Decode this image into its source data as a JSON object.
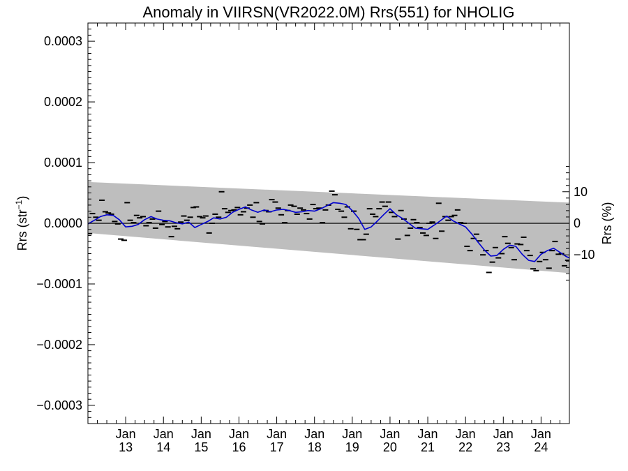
{
  "chart_data": {
    "type": "line",
    "title": "Anomaly in VIIRSN(VR2022.0M) Rrs(551) for NHOLIG",
    "ylabel_left": "Rrs (str⁻¹)",
    "ylabel_right": "Rrs (%)",
    "ylim": [
      -0.00033,
      0.00033
    ],
    "y_ticks": [
      -0.0003,
      -0.0002,
      -0.0001,
      0.0,
      0.0001,
      0.0002,
      0.0003
    ],
    "y_tick_labels": [
      "−0.0003",
      "−0.0002",
      "−0.0001",
      "0.0000",
      "0.0001",
      "0.0002",
      "0.0003"
    ],
    "y2_ticks": [
      -10,
      0,
      10
    ],
    "y2_tick_labels": [
      "−10",
      "0",
      "10"
    ],
    "y2_scale_note": "0.000052 str^-1 equals 10 %",
    "xlim": [
      2012.0,
      2024.75
    ],
    "x_ticks": [
      2013,
      2014,
      2015,
      2016,
      2017,
      2018,
      2019,
      2020,
      2021,
      2022,
      2023,
      2024
    ],
    "x_tick_labels": [
      {
        "month": "Jan",
        "year": "13"
      },
      {
        "month": "Jan",
        "year": "14"
      },
      {
        "month": "Jan",
        "year": "15"
      },
      {
        "month": "Jan",
        "year": "16"
      },
      {
        "month": "Jan",
        "year": "17"
      },
      {
        "month": "Jan",
        "year": "18"
      },
      {
        "month": "Jan",
        "year": "19"
      },
      {
        "month": "Jan",
        "year": "20"
      },
      {
        "month": "Jan",
        "year": "21"
      },
      {
        "month": "Jan",
        "year": "22"
      },
      {
        "month": "Jan",
        "year": "23"
      },
      {
        "month": "Jan",
        "year": "24"
      }
    ],
    "confidence_band": {
      "x": [
        2012.0,
        2024.75
      ],
      "upper": [
        6.8e-05,
        3.4e-05
      ],
      "lower": [
        -1.6e-05,
        -8.2e-05
      ],
      "color": "#bebebe"
    },
    "zero_line": {
      "y": 0.0,
      "color": "#000000"
    },
    "monthly_anomalies": {
      "color": "#000000",
      "x": [
        2012.04,
        2012.12,
        2012.21,
        2012.29,
        2012.37,
        2012.46,
        2012.54,
        2012.62,
        2012.71,
        2012.79,
        2012.87,
        2012.96,
        2013.04,
        2013.12,
        2013.21,
        2013.29,
        2013.37,
        2013.46,
        2013.54,
        2013.62,
        2013.71,
        2013.79,
        2013.87,
        2013.96,
        2014.04,
        2014.12,
        2014.21,
        2014.29,
        2014.37,
        2014.46,
        2014.54,
        2014.62,
        2014.71,
        2014.79,
        2014.87,
        2014.96,
        2015.04,
        2015.12,
        2015.21,
        2015.29,
        2015.37,
        2015.46,
        2015.54,
        2015.62,
        2015.71,
        2015.79,
        2015.87,
        2015.96,
        2016.04,
        2016.12,
        2016.21,
        2016.29,
        2016.37,
        2016.46,
        2016.54,
        2016.62,
        2016.71,
        2016.79,
        2016.87,
        2016.96,
        2017.04,
        2017.12,
        2017.21,
        2017.29,
        2017.37,
        2017.46,
        2017.54,
        2017.62,
        2017.71,
        2017.79,
        2017.87,
        2017.96,
        2018.04,
        2018.12,
        2018.21,
        2018.29,
        2018.37,
        2018.46,
        2018.54,
        2018.62,
        2018.71,
        2018.79,
        2018.87,
        2018.96,
        2019.04,
        2019.12,
        2019.21,
        2019.29,
        2019.37,
        2019.46,
        2019.54,
        2019.62,
        2019.71,
        2019.79,
        2019.87,
        2019.96,
        2020.04,
        2020.12,
        2020.21,
        2020.29,
        2020.37,
        2020.46,
        2020.54,
        2020.62,
        2020.71,
        2020.79,
        2020.87,
        2020.96,
        2021.04,
        2021.12,
        2021.21,
        2021.29,
        2021.37,
        2021.46,
        2021.54,
        2021.62,
        2021.71,
        2021.79,
        2021.87,
        2021.96,
        2022.04,
        2022.12,
        2022.21,
        2022.29,
        2022.37,
        2022.46,
        2022.54,
        2022.62,
        2022.71,
        2022.79,
        2022.87,
        2022.96,
        2023.04,
        2023.12,
        2023.21,
        2023.29,
        2023.37,
        2023.46,
        2023.54,
        2023.62,
        2023.71,
        2023.79,
        2023.87,
        2023.96,
        2024.04,
        2024.12,
        2024.21,
        2024.29,
        2024.37,
        2024.46,
        2024.54,
        2024.62,
        2024.71
      ],
      "y": [
        -1.7e-05,
        1.6e-05,
        1e-05,
        5e-06,
        3.8e-05,
        1.9e-05,
        1.7e-05,
        1.5e-05,
        3e-06,
        -1e-06,
        -2.6e-05,
        -2.8e-05,
        3.4e-05,
        5e-06,
        1e-06,
        1.3e-05,
        9e-06,
        1.1e-05,
        -4e-06,
        1e-06,
        7e-06,
        -8e-06,
        2e-05,
        -2e-06,
        3e-06,
        -6e-06,
        -2.2e-05,
        -5e-06,
        -9e-06,
        2e-06,
        1.2e-05,
        5e-06,
        1e-05,
        2.6e-05,
        2.7e-05,
        1.1e-05,
        9e-06,
        1.2e-05,
        -1.6e-05,
        0.0,
        1.5e-05,
        1e-05,
        5.2e-05,
        2.4e-05,
        1.8e-05,
        2.1e-05,
        2.2e-05,
        2.6e-05,
        1.4e-05,
        1.9e-05,
        2.5e-05,
        3e-05,
        1e-05,
        3.4e-05,
        3e-06,
        -1e-06,
        2.1e-05,
        1.9e-05,
        3.9e-05,
        3.5e-05,
        2.5e-05,
        1.4e-05,
        1e-06,
        2.1e-05,
        3e-05,
        2.8e-05,
        1.5e-05,
        2.5e-05,
        2.2e-05,
        1.6e-05,
        7e-06,
        3.1e-05,
        2.4e-05,
        2.5e-05,
        1e-06,
        2.2e-05,
        3e-05,
        5.3e-05,
        4.7e-05,
        2.3e-05,
        2e-05,
        1e-05,
        2.7e-05,
        -9e-06,
        2e-05,
        -1e-05,
        -2.7e-05,
        -2.7e-05,
        -1.8e-05,
        2.4e-05,
        1.5e-05,
        1.1e-05,
        2.4e-05,
        3.5e-05,
        2.8e-05,
        3.5e-05,
        1.8e-05,
        1.1e-05,
        -2.6e-05,
        2.1e-05,
        7e-06,
        -2e-05,
        -8e-06,
        6e-06,
        1e-06,
        -7e-06,
        -1.6e-05,
        -2e-05,
        0.0,
        2e-06,
        -2.5e-05,
        3.3e-05,
        -1.3e-05,
        1.1e-05,
        5e-06,
        1.1e-05,
        1.3e-05,
        2.2e-05,
        1e-06,
        0.0,
        -3.8e-05,
        -4.5e-05,
        -2.5e-05,
        -1.8e-05,
        -2.9e-05,
        -5.2e-05,
        -4.5e-05,
        -8.1e-05,
        -6.4e-05,
        -4e-05,
        -5.7e-05,
        -5e-05,
        -2.2e-05,
        -3.3e-05,
        -4e-05,
        -6e-05,
        -3.4e-05,
        -3.5e-05,
        -2.3e-05,
        -4.5e-05,
        -5.3e-05,
        -7.5e-05,
        -7.8e-05,
        -6.3e-05,
        -4.8e-05,
        -6e-05,
        -7.4e-05,
        -4.5e-05,
        -3e-05,
        -5.1e-05,
        -5e-05,
        -7e-05,
        -6.1e-05
      ]
    },
    "smoothed_series": {
      "color": "#0000d0",
      "x": [
        2012.0,
        2012.17,
        2012.33,
        2012.5,
        2012.67,
        2012.83,
        2013.0,
        2013.17,
        2013.33,
        2013.5,
        2013.67,
        2013.83,
        2014.0,
        2014.17,
        2014.33,
        2014.5,
        2014.67,
        2014.83,
        2015.0,
        2015.17,
        2015.33,
        2015.5,
        2015.67,
        2015.83,
        2016.0,
        2016.17,
        2016.33,
        2016.5,
        2016.67,
        2016.83,
        2017.0,
        2017.17,
        2017.33,
        2017.5,
        2017.67,
        2017.83,
        2018.0,
        2018.17,
        2018.33,
        2018.5,
        2018.67,
        2018.83,
        2019.0,
        2019.17,
        2019.33,
        2019.5,
        2019.67,
        2019.83,
        2020.0,
        2020.17,
        2020.33,
        2020.5,
        2020.67,
        2020.83,
        2021.0,
        2021.17,
        2021.33,
        2021.5,
        2021.67,
        2021.83,
        2022.0,
        2022.17,
        2022.33,
        2022.5,
        2022.67,
        2022.83,
        2023.0,
        2023.17,
        2023.33,
        2023.5,
        2023.67,
        2023.83,
        2024.0,
        2024.17,
        2024.33,
        2024.5,
        2024.67,
        2024.75
      ],
      "y": [
        -1e-06,
        5e-06,
        1.1e-05,
        1.4e-05,
        1.3e-05,
        6e-06,
        -6e-06,
        -5e-06,
        -2e-06,
        6e-06,
        1.1e-05,
        7e-06,
        5e-06,
        4e-06,
        1e-06,
        -1e-06,
        2e-06,
        -7e-06,
        -2e-06,
        3e-06,
        9e-06,
        7e-06,
        1e-05,
        1.8e-05,
        2.3e-05,
        2.7e-05,
        2.2e-05,
        1.8e-05,
        2.2e-05,
        1.9e-05,
        2.2e-05,
        2.3e-05,
        2.1e-05,
        1.8e-05,
        1.9e-05,
        2.1e-05,
        2e-05,
        2.4e-05,
        2.9e-05,
        3.4e-05,
        3.3e-05,
        3.1e-05,
        2.1e-05,
        8e-06,
        -1e-05,
        -6e-06,
        4e-06,
        1.4e-05,
        2.4e-05,
        1.4e-05,
        8e-06,
        0.0,
        -8e-06,
        -9e-06,
        -1e-05,
        -3e-06,
        4e-06,
        1.2e-05,
        4e-06,
        -1e-06,
        -6e-06,
        -1.8e-05,
        -3.1e-05,
        -4.4e-05,
        -5.4e-05,
        -5.3e-05,
        -4.3e-05,
        -3.6e-05,
        -3.8e-05,
        -5.1e-05,
        -6.1e-05,
        -6.3e-05,
        -5.1e-05,
        -4.5e-05,
        -4.1e-05,
        -4.8e-05,
        -5.5e-05,
        -5.7e-05
      ]
    }
  }
}
